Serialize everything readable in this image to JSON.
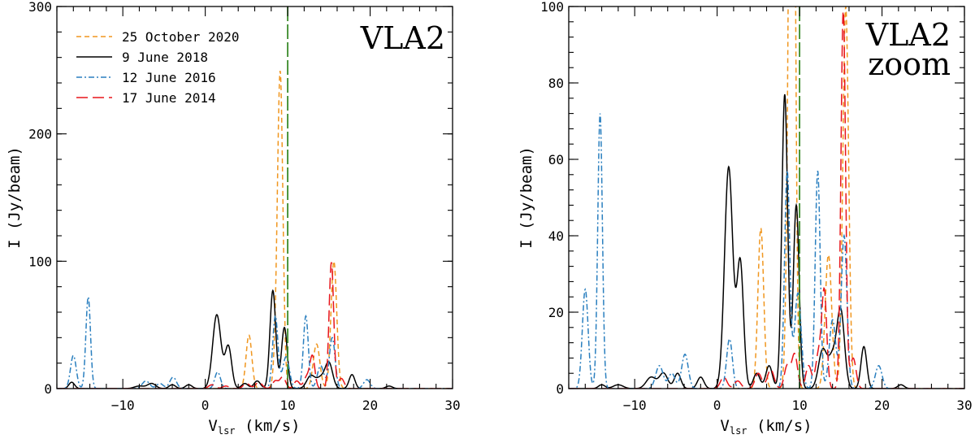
{
  "chart_data": [
    {
      "type": "line",
      "panel_label": "VLA2",
      "xlabel": {
        "main": "V",
        "sub": "lsr",
        "rest": " (km/s)"
      },
      "ylabel": "I (Jy/beam)",
      "xlim": [
        -18,
        30
      ],
      "ylim": [
        0,
        300
      ],
      "x_ticks": [
        -10,
        0,
        10,
        20,
        30
      ],
      "x_tick_labels": [
        "−10",
        "0",
        "10",
        "20",
        "30"
      ],
      "y_ticks": [
        0,
        100,
        200,
        300
      ],
      "y_tick_labels": [
        "0",
        "100",
        "200",
        "300"
      ],
      "vline": {
        "x": 10,
        "color": "#3a8a2a"
      },
      "legend": [
        {
          "label": "25 October 2020",
          "color": "#f0961e",
          "dash": "6,4"
        },
        {
          "label": "9 June 2018",
          "color": "#000000",
          "dash": ""
        },
        {
          "label": "12 June 2016",
          "color": "#2a7fbf",
          "dash": "7,3,2,3"
        },
        {
          "label": "17 June 2014",
          "color": "#e8151b",
          "dash": "14,6"
        }
      ],
      "series": [
        {
          "name": "25 October 2020",
          "color": "#f0961e",
          "dash": "6,4",
          "peaks": [
            [
              5.3,
              42,
              0.35
            ],
            [
              8.6,
              25,
              0.3
            ],
            [
              9.1,
              243,
              0.32
            ],
            [
              13.5,
              35,
              0.4
            ],
            [
              15.6,
              100,
              0.35
            ]
          ]
        },
        {
          "name": "9 June 2018",
          "color": "#000000",
          "dash": "",
          "peaks": [
            [
              -16.2,
              5,
              0.35
            ],
            [
              -8,
              2,
              0.6
            ],
            [
              -6.5,
              4,
              0.5
            ],
            [
              -4,
              3,
              0.4
            ],
            [
              -2,
              3,
              0.4
            ],
            [
              1.4,
              58,
              0.5
            ],
            [
              2.8,
              33,
              0.4
            ],
            [
              4.8,
              4,
              0.4
            ],
            [
              6.3,
              6,
              0.4
            ],
            [
              8.2,
              77,
              0.35
            ],
            [
              9.6,
              48,
              0.35
            ],
            [
              12.8,
              10,
              0.5
            ],
            [
              14,
              8,
              0.5
            ],
            [
              15,
              20,
              0.45
            ],
            [
              17.8,
              11,
              0.35
            ],
            [
              22.3,
              2,
              0.4
            ]
          ]
        },
        {
          "name": "12 June 2016",
          "color": "#2a7fbf",
          "dash": "7,3,2,3",
          "peaks": [
            [
              -16,
              26,
              0.35
            ],
            [
              -14.2,
              72,
              0.28
            ],
            [
              -7.2,
              6,
              0.45
            ],
            [
              -5.5,
              4,
              0.4
            ],
            [
              -3.9,
              9,
              0.4
            ],
            [
              1.5,
              13,
              0.35
            ],
            [
              8.5,
              57,
              0.32
            ],
            [
              9.8,
              25,
              0.4
            ],
            [
              12.2,
              57,
              0.3
            ],
            [
              14,
              18,
              0.4
            ],
            [
              15.4,
              40,
              0.35
            ],
            [
              19.6,
              7,
              0.4
            ]
          ]
        },
        {
          "name": "17 June 2014",
          "color": "#e8151b",
          "dash": "14,6",
          "peaks": [
            [
              0.8,
              3,
              0.4
            ],
            [
              2.5,
              2,
              0.4
            ],
            [
              5,
              4,
              0.4
            ],
            [
              6.5,
              5,
              0.4
            ],
            [
              8.5,
              6,
              0.35
            ],
            [
              9.4,
              9,
              0.35
            ],
            [
              11.1,
              6,
              0.35
            ],
            [
              12.3,
              9,
              0.35
            ],
            [
              13,
              25,
              0.3
            ],
            [
              15.3,
              99,
              0.28
            ],
            [
              16.5,
              8,
              0.35
            ]
          ]
        }
      ]
    },
    {
      "type": "line",
      "panel_label": "VLA2 zoom",
      "panel_label_lines": [
        "VLA2",
        "zoom"
      ],
      "xlabel": {
        "main": "V",
        "sub": "lsr",
        "rest": " (km/s)"
      },
      "ylabel": "I (Jy/beam)",
      "xlim": [
        -18,
        30
      ],
      "ylim": [
        0,
        100
      ],
      "x_ticks": [
        -10,
        0,
        10,
        20,
        30
      ],
      "x_tick_labels": [
        "−10",
        "0",
        "10",
        "20",
        "30"
      ],
      "y_ticks": [
        0,
        20,
        40,
        60,
        80,
        100
      ],
      "y_tick_labels": [
        "0",
        "20",
        "40",
        "60",
        "80",
        "100"
      ],
      "vline": {
        "x": 10,
        "color": "#3a8a2a"
      },
      "series": [
        {
          "name": "25 October 2020",
          "color": "#f0961e",
          "dash": "6,4",
          "peaks": [
            [
              5.3,
              42,
              0.35
            ],
            [
              8.6,
              25,
              0.3
            ],
            [
              9.1,
              243,
              0.32
            ],
            [
              13.5,
              35,
              0.4
            ],
            [
              15.6,
              100,
              0.35
            ]
          ]
        },
        {
          "name": "9 June 2018",
          "color": "#000000",
          "dash": "",
          "peaks": [
            [
              -14,
              1,
              0.4
            ],
            [
              -12,
              1,
              0.6
            ],
            [
              -8,
              3,
              0.6
            ],
            [
              -6.5,
              4,
              0.5
            ],
            [
              -4.8,
              4,
              0.4
            ],
            [
              -2,
              3,
              0.4
            ],
            [
              1.4,
              58,
              0.5
            ],
            [
              2.8,
              33,
              0.4
            ],
            [
              4.8,
              4,
              0.4
            ],
            [
              6.3,
              6,
              0.4
            ],
            [
              8.2,
              77,
              0.35
            ],
            [
              9.6,
              48,
              0.35
            ],
            [
              12.8,
              10,
              0.5
            ],
            [
              14,
              8,
              0.5
            ],
            [
              15,
              20,
              0.45
            ],
            [
              17.8,
              11,
              0.35
            ],
            [
              22.3,
              1,
              0.4
            ]
          ]
        },
        {
          "name": "12 June 2016",
          "color": "#2a7fbf",
          "dash": "7,3,2,3",
          "peaks": [
            [
              -16,
              26,
              0.35
            ],
            [
              -14.2,
              72,
              0.28
            ],
            [
              -7,
              6,
              0.45
            ],
            [
              -5.5,
              4,
              0.4
            ],
            [
              -3.9,
              9,
              0.4
            ],
            [
              1.5,
              13,
              0.35
            ],
            [
              8.5,
              57,
              0.32
            ],
            [
              9.8,
              25,
              0.4
            ],
            [
              12.2,
              57,
              0.3
            ],
            [
              14,
              18,
              0.4
            ],
            [
              15.4,
              40,
              0.35
            ],
            [
              19.6,
              6,
              0.4
            ]
          ]
        },
        {
          "name": "17 June 2014",
          "color": "#e8151b",
          "dash": "14,6",
          "peaks": [
            [
              0.8,
              3,
              0.4
            ],
            [
              2.5,
              2,
              0.4
            ],
            [
              5,
              4,
              0.4
            ],
            [
              6.5,
              5,
              0.4
            ],
            [
              8.5,
              6,
              0.35
            ],
            [
              9.4,
              9,
              0.35
            ],
            [
              11.1,
              6,
              0.35
            ],
            [
              12.3,
              9,
              0.35
            ],
            [
              13,
              25,
              0.3
            ],
            [
              15.3,
              99,
              0.28
            ],
            [
              16.5,
              8,
              0.35
            ]
          ]
        }
      ]
    }
  ]
}
